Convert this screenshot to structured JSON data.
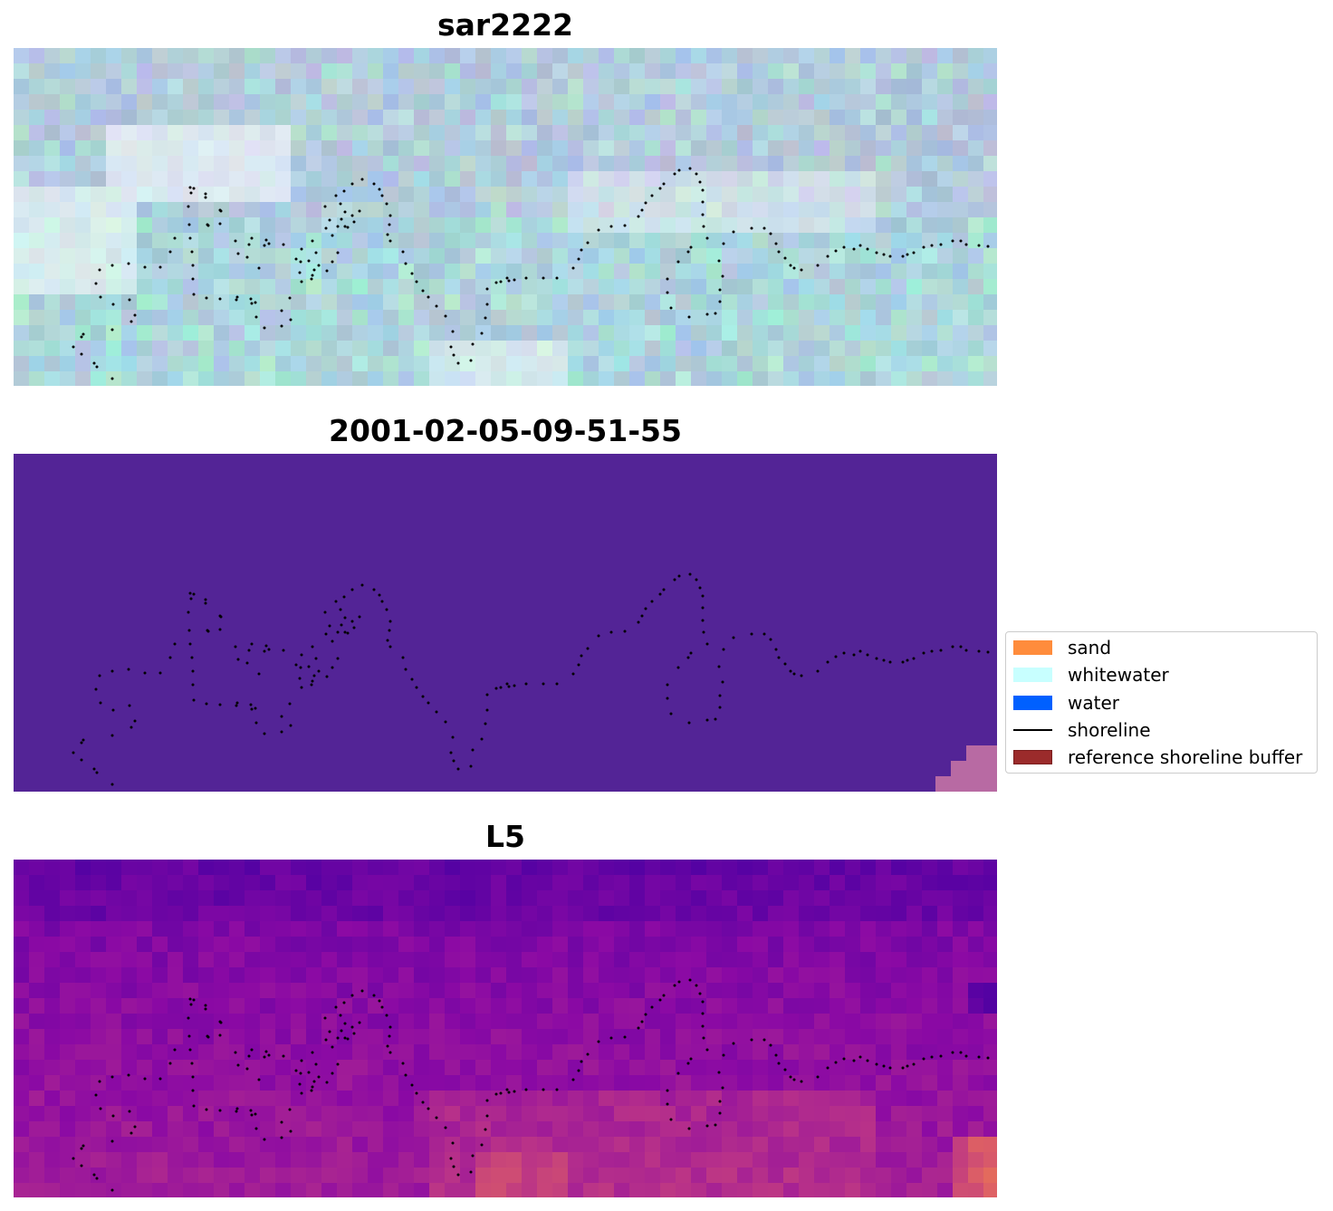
{
  "panels": [
    {
      "title": "sar2222",
      "image": "rgb-composite-thumbnail"
    },
    {
      "title": "2001-02-05-09-51-55",
      "image": "classified-image",
      "fill_color": "#532496"
    },
    {
      "title": "L5",
      "image": "index-map",
      "colormap": "plasma"
    }
  ],
  "legend": {
    "items": [
      {
        "label": "sand",
        "color": "#ff8c3c",
        "kind": "patch"
      },
      {
        "label": "whitewater",
        "color": "#c8ffff",
        "kind": "patch"
      },
      {
        "label": "water",
        "color": "#0060ff",
        "kind": "patch"
      },
      {
        "label": "shoreline",
        "color": "#000000",
        "kind": "line"
      },
      {
        "label": "reference shoreline buffer",
        "color": "#9b2b2b",
        "kind": "patch"
      }
    ]
  },
  "shoreline_color": "#000000"
}
